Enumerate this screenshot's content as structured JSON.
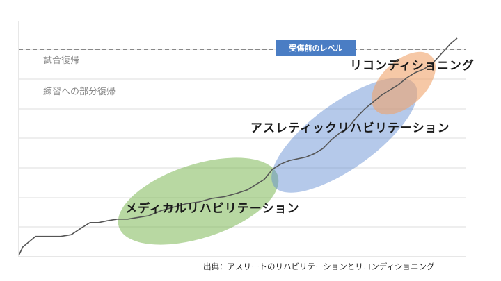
{
  "chart_data": {
    "type": "line",
    "title": "",
    "xlabel": "",
    "ylabel": "",
    "grid": true,
    "reference_line": {
      "label": "受傷前のレベル",
      "color": "#4a7dc4",
      "style": "dashed"
    },
    "level_labels": [
      "試合復帰",
      "練習への部分復帰"
    ],
    "phases": [
      {
        "name": "メディカルリハビリテーション",
        "color": "#7db855"
      },
      {
        "name": "アスレティックリハビリテーション",
        "color": "#5b87d1"
      },
      {
        "name": "リコンディショニング",
        "color": "#f0a36b"
      }
    ],
    "series": [
      {
        "color": "#555555",
        "values": [
          [
            0,
            0
          ],
          [
            2,
            5
          ],
          [
            5,
            8
          ],
          [
            8,
            11
          ],
          [
            15,
            11
          ],
          [
            20,
            11
          ],
          [
            25,
            12
          ],
          [
            30,
            16
          ],
          [
            34,
            19
          ],
          [
            38,
            19
          ],
          [
            42,
            20
          ],
          [
            47,
            21
          ],
          [
            52,
            21
          ],
          [
            57,
            22
          ],
          [
            62,
            23
          ],
          [
            68,
            26
          ],
          [
            74,
            28
          ],
          [
            80,
            30
          ],
          [
            86,
            31
          ],
          [
            92,
            33
          ],
          [
            98,
            34
          ],
          [
            104,
            36
          ],
          [
            109,
            38
          ],
          [
            113,
            41
          ],
          [
            117,
            44
          ],
          [
            121,
            50
          ],
          [
            125,
            53
          ],
          [
            129,
            55
          ],
          [
            133,
            56
          ],
          [
            137,
            57
          ],
          [
            141,
            59
          ],
          [
            145,
            62
          ],
          [
            149,
            67
          ],
          [
            153,
            71
          ],
          [
            157,
            74
          ],
          [
            161,
            80
          ],
          [
            165,
            85
          ],
          [
            169,
            89
          ],
          [
            173,
            93
          ],
          [
            177,
            96
          ],
          [
            181,
            99
          ],
          [
            185,
            103
          ],
          [
            189,
            106
          ],
          [
            193,
            108
          ],
          [
            197,
            111
          ],
          [
            200,
            115
          ],
          [
            203,
            119
          ],
          [
            206,
            123
          ],
          [
            209,
            126
          ]
        ]
      }
    ]
  },
  "source_note": "出典：アスリートのリハビリテーションとリコンディショニング"
}
